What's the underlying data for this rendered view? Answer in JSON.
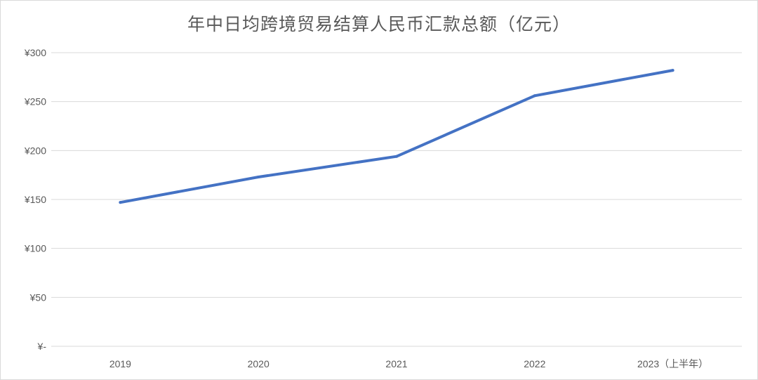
{
  "chart_data": {
    "type": "line",
    "title": "年中日均跨境贸易结算人民币汇款总额（亿元）",
    "xlabel": "",
    "ylabel": "",
    "categories": [
      "2019",
      "2020",
      "2021",
      "2022",
      "2023（上半年）"
    ],
    "series": [
      {
        "values": [
          147,
          173,
          194,
          256,
          282
        ]
      }
    ],
    "y_ticks": [
      {
        "value": 0,
        "label": "¥-"
      },
      {
        "value": 50,
        "label": "¥50"
      },
      {
        "value": 100,
        "label": "¥100"
      },
      {
        "value": 150,
        "label": "¥150"
      },
      {
        "value": 200,
        "label": "¥200"
      },
      {
        "value": 250,
        "label": "¥250"
      },
      {
        "value": 300,
        "label": "¥300"
      }
    ],
    "ylim": [
      0,
      300
    ],
    "grid": true,
    "legend": "none",
    "colors": {
      "line": "#4472c4",
      "grid": "#d9d9d9",
      "text": "#595959"
    }
  }
}
